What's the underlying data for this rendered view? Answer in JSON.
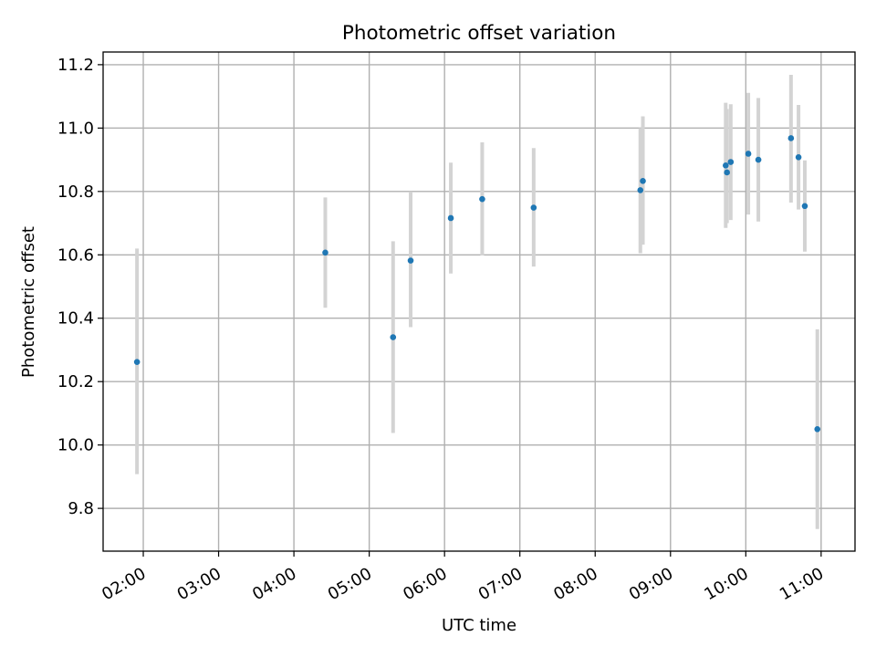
{
  "chart_data": {
    "type": "scatter",
    "title": "Photometric offset variation",
    "xlabel": "UTC time",
    "ylabel": "Photometric offset",
    "grid": true,
    "xlim": [
      "01:28",
      "11:27"
    ],
    "ylim": [
      9.665,
      11.24
    ],
    "x_ticks": [
      "02:00",
      "03:00",
      "04:00",
      "05:00",
      "06:00",
      "07:00",
      "08:00",
      "09:00",
      "10:00",
      "11:00"
    ],
    "y_ticks": [
      "9.8",
      "10.0",
      "10.2",
      "10.4",
      "10.6",
      "10.8",
      "11.0",
      "11.2"
    ],
    "colors": {
      "point": "#1f77b4",
      "errorbar": "#d3d3d3",
      "grid": "#b0b0b0"
    },
    "points": [
      {
        "x": "01:55",
        "y": 10.262,
        "ylow": 9.908,
        "yhigh": 10.62
      },
      {
        "x": "04:25",
        "y": 10.607,
        "ylow": 10.433,
        "yhigh": 10.781
      },
      {
        "x": "05:19",
        "y": 10.34,
        "ylow": 10.038,
        "yhigh": 10.643
      },
      {
        "x": "05:33",
        "y": 10.582,
        "ylow": 10.372,
        "yhigh": 10.8
      },
      {
        "x": "06:05",
        "y": 10.716,
        "ylow": 10.541,
        "yhigh": 10.891
      },
      {
        "x": "06:30",
        "y": 10.776,
        "ylow": 10.598,
        "yhigh": 10.955
      },
      {
        "x": "07:11",
        "y": 10.749,
        "ylow": 10.563,
        "yhigh": 10.937
      },
      {
        "x": "08:36",
        "y": 10.804,
        "ylow": 10.605,
        "yhigh": 11.0
      },
      {
        "x": "08:38",
        "y": 10.833,
        "ylow": 10.632,
        "yhigh": 11.037
      },
      {
        "x": "09:44",
        "y": 10.882,
        "ylow": 10.685,
        "yhigh": 11.08
      },
      {
        "x": "09:45",
        "y": 10.86,
        "ylow": 10.7,
        "yhigh": 11.06
      },
      {
        "x": "09:48",
        "y": 10.893,
        "ylow": 10.71,
        "yhigh": 11.075
      },
      {
        "x": "10:02",
        "y": 10.919,
        "ylow": 10.727,
        "yhigh": 11.111
      },
      {
        "x": "10:10",
        "y": 10.9,
        "ylow": 10.705,
        "yhigh": 11.095
      },
      {
        "x": "10:36",
        "y": 10.968,
        "ylow": 10.765,
        "yhigh": 11.168
      },
      {
        "x": "10:42",
        "y": 10.908,
        "ylow": 10.743,
        "yhigh": 11.073
      },
      {
        "x": "10:47",
        "y": 10.754,
        "ylow": 10.61,
        "yhigh": 10.898
      },
      {
        "x": "10:57",
        "y": 10.05,
        "ylow": 9.735,
        "yhigh": 10.365
      }
    ]
  }
}
